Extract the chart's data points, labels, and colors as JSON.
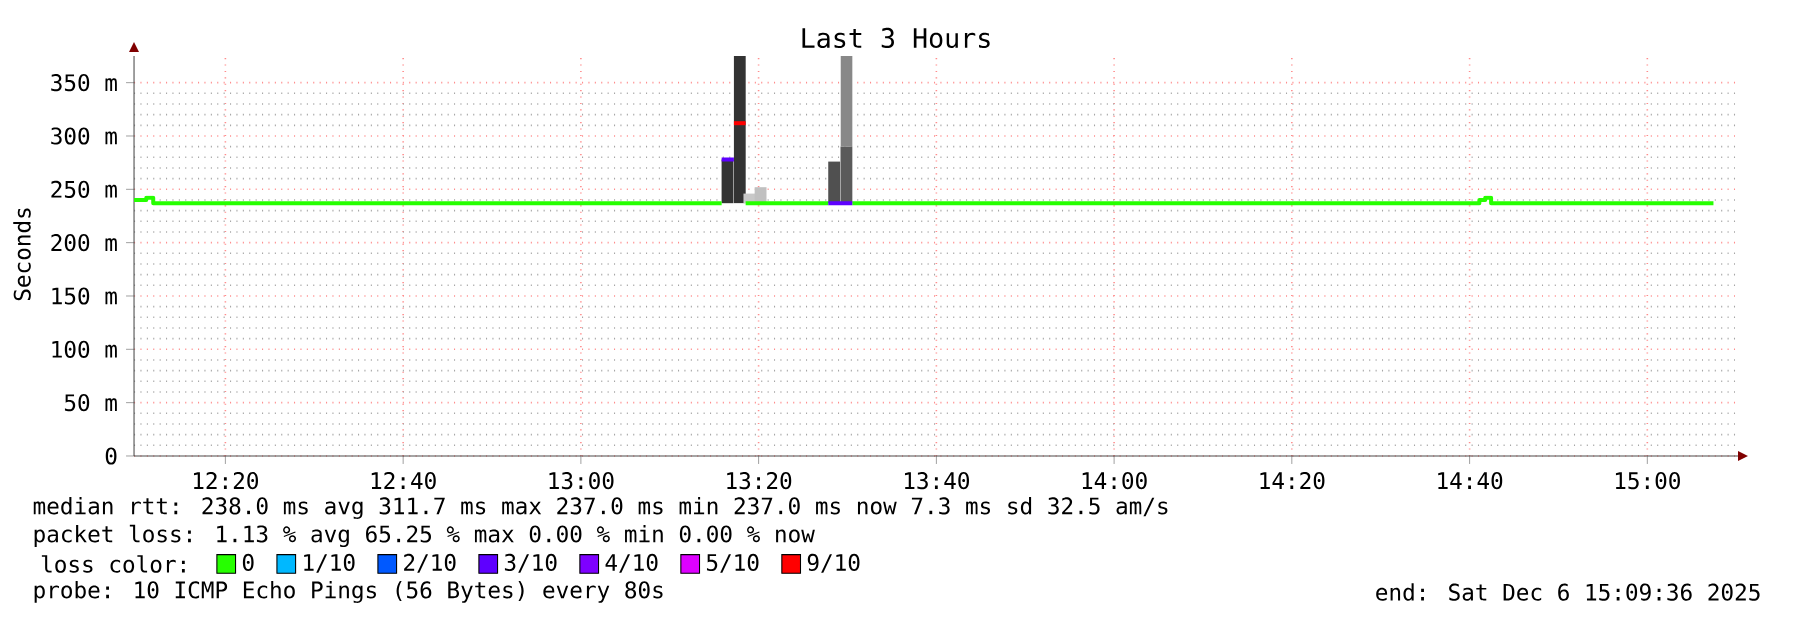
{
  "chart_data": {
    "type": "step",
    "title": "Last 3 Hours",
    "ylabel": "Seconds",
    "legend_title": "loss color:",
    "legend": "bottom",
    "grid": true,
    "xlim": [
      12.162,
      15.17
    ],
    "ylim": [
      0,
      375
    ],
    "xticks": [
      {
        "value": 12.3333,
        "label": "12:20"
      },
      {
        "value": 12.6667,
        "label": "12:40"
      },
      {
        "value": 13,
        "label": "13:00"
      },
      {
        "value": 13.3333,
        "label": "13:20"
      },
      {
        "value": 13.6667,
        "label": "13:40"
      },
      {
        "value": 14,
        "label": "14:00"
      },
      {
        "value": 14.3333,
        "label": "14:20"
      },
      {
        "value": 14.6667,
        "label": "14:40"
      },
      {
        "value": 15,
        "label": "15:00"
      }
    ],
    "yticks": [
      {
        "value": 0,
        "label": "0"
      },
      {
        "value": 50,
        "label": "50 m"
      },
      {
        "value": 100,
        "label": "100 m"
      },
      {
        "value": 150,
        "label": "150 m"
      },
      {
        "value": 200,
        "label": "200 m"
      },
      {
        "value": 250,
        "label": "250 m"
      },
      {
        "value": 300,
        "label": "300 m"
      },
      {
        "value": 350,
        "label": "350 m"
      }
    ],
    "series": [
      {
        "type": "bar",
        "x": [
          13.275,
          13.298,
          13.316,
          13.337,
          13.475,
          13.498
        ],
        "base": [
          237,
          237,
          237,
          237,
          237,
          237
        ],
        "values": [
          41,
          138,
          9,
          15,
          39,
          53
        ],
        "colors": [
          "#333333",
          "#333333",
          "#c8c8c8",
          "#c0c0c0",
          "#505050",
          "#5a5a5a"
        ]
      },
      {
        "type": "bar",
        "x": [
          13.498
        ],
        "base": [
          290
        ],
        "values": [
          85
        ],
        "colors": [
          "#888888"
        ]
      },
      {
        "name": "0",
        "color": "#26ff00",
        "x": [
          12.162,
          12.185,
          12.198,
          13.264,
          13.265,
          13.309,
          13.464,
          13.465,
          13.509,
          14.685,
          14.696,
          14.707,
          15.124
        ],
        "values": [
          240,
          242,
          237,
          237,
          null,
          237,
          237,
          null,
          237,
          240,
          242,
          237,
          237
        ]
      },
      {
        "name": "1/10",
        "color": "#00b8ff"
      },
      {
        "name": "2/10",
        "color": "#0059ff"
      },
      {
        "name": "3/10",
        "color": "#5e00ff",
        "x": [
          13.264,
          13.287,
          13.288,
          13.464,
          13.509
        ],
        "values": [
          278,
          278,
          null,
          237,
          237
        ]
      },
      {
        "name": "4/10",
        "color": "#7e00ff"
      },
      {
        "name": "5/10",
        "color": "#dd00ff"
      },
      {
        "name": "9/10",
        "color": "#ff0000",
        "x": [
          13.287,
          13.309
        ],
        "values": [
          312,
          312
        ]
      }
    ],
    "annotations": [
      "median rtt:  238.0 ms avg  311.7 ms max  237.0 ms min  237.0 ms now  7.3 ms sd  32.5   am/s",
      "packet loss: 1.13 % avg  65.25 % max  0.00 % min  0.00 % now",
      "probe:       10 ICMP Echo Pings (56 Bytes) every 80s",
      "end: Sat Dec  6 15:09:36 2025"
    ]
  }
}
